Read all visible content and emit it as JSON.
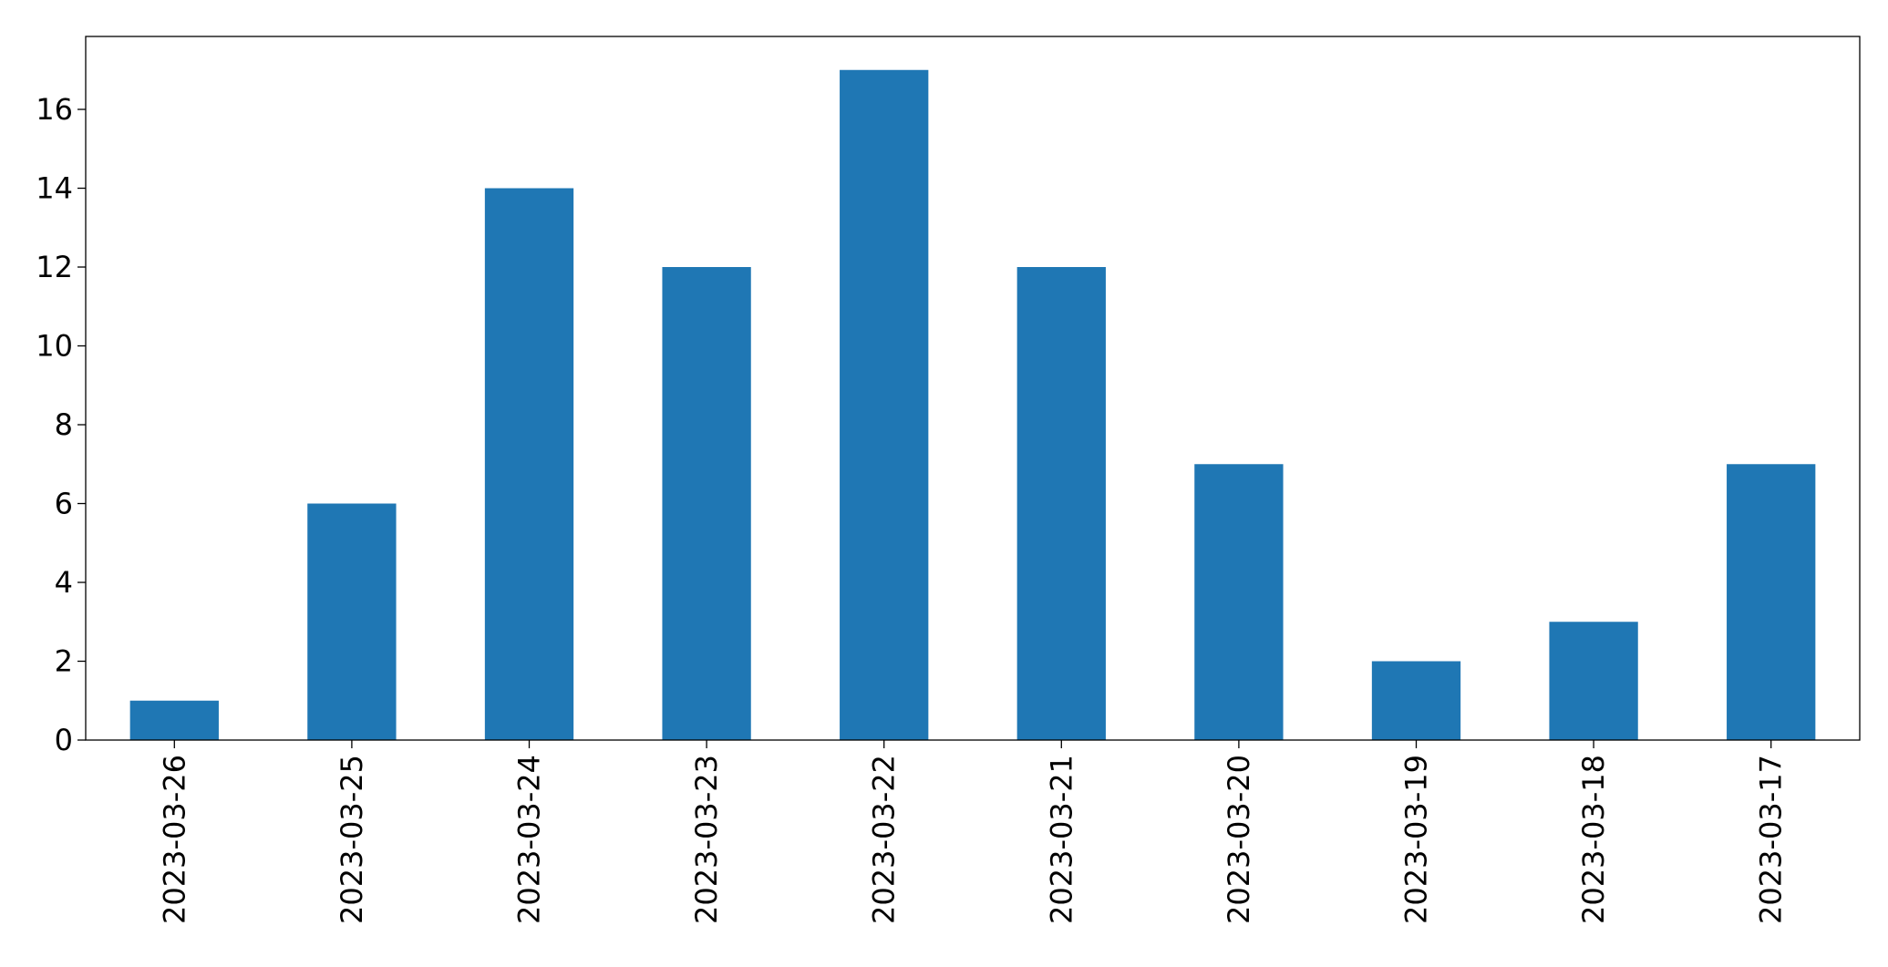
{
  "chart_data": {
    "type": "bar",
    "categories": [
      "2023-03-26",
      "2023-03-25",
      "2023-03-24",
      "2023-03-23",
      "2023-03-22",
      "2023-03-21",
      "2023-03-20",
      "2023-03-19",
      "2023-03-18",
      "2023-03-17"
    ],
    "values": [
      1,
      6,
      14,
      12,
      17,
      12,
      7,
      2,
      3,
      7
    ],
    "color": "#1f77b4",
    "ylim": [
      0,
      17.85
    ],
    "yticks": [
      0,
      2,
      4,
      6,
      8,
      10,
      12,
      14,
      16
    ],
    "grid": false
  }
}
